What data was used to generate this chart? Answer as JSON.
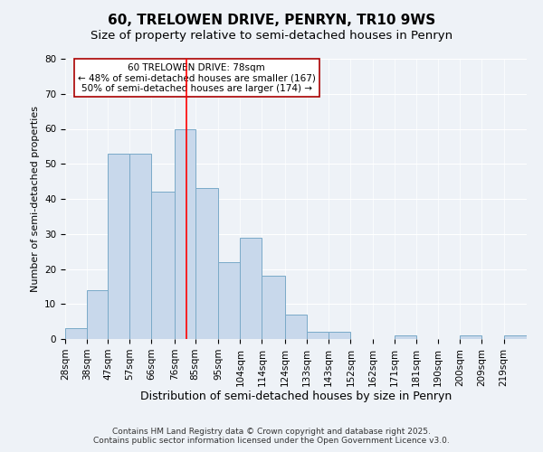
{
  "title": "60, TRELOWEN DRIVE, PENRYN, TR10 9WS",
  "subtitle": "Size of property relative to semi-detached houses in Penryn",
  "xlabel": "Distribution of semi-detached houses by size in Penryn",
  "ylabel": "Number of semi-detached properties",
  "bin_edges": [
    23.5,
    33,
    42,
    51.5,
    61,
    71,
    80,
    90,
    99.5,
    109,
    119,
    128.5,
    138,
    147.5,
    157,
    166.5,
    176,
    185.5,
    195,
    204.5,
    214,
    224
  ],
  "tick_labels": [
    "28sqm",
    "38sqm",
    "47sqm",
    "57sqm",
    "66sqm",
    "76sqm",
    "85sqm",
    "95sqm",
    "104sqm",
    "114sqm",
    "124sqm",
    "133sqm",
    "143sqm",
    "152sqm",
    "162sqm",
    "171sqm",
    "181sqm",
    "190sqm",
    "200sqm",
    "209sqm",
    "219sqm"
  ],
  "bar_heights": [
    3,
    14,
    53,
    53,
    42,
    60,
    43,
    22,
    29,
    18,
    7,
    2,
    2,
    0,
    0,
    1,
    0,
    0,
    1,
    0,
    1
  ],
  "bar_color": "#c8d8eb",
  "bar_edgecolor": "#7aaac8",
  "redline_x": 76,
  "ylim": [
    0,
    80
  ],
  "yticks": [
    0,
    10,
    20,
    30,
    40,
    50,
    60,
    70,
    80
  ],
  "annotation_title": "60 TRELOWEN DRIVE: 78sqm",
  "annotation_line1": "← 48% of semi-detached houses are smaller (167)",
  "annotation_line2": "50% of semi-detached houses are larger (174) →",
  "annotation_box_facecolor": "#ffffff",
  "annotation_box_edgecolor": "#aa0000",
  "footer1": "Contains HM Land Registry data © Crown copyright and database right 2025.",
  "footer2": "Contains public sector information licensed under the Open Government Licence v3.0.",
  "background_color": "#eef2f7",
  "grid_color": "#ffffff",
  "title_fontsize": 11,
  "subtitle_fontsize": 9.5,
  "xlabel_fontsize": 9,
  "ylabel_fontsize": 8,
  "tick_fontsize": 7.5,
  "annotation_fontsize": 7.5,
  "footer_fontsize": 6.5
}
